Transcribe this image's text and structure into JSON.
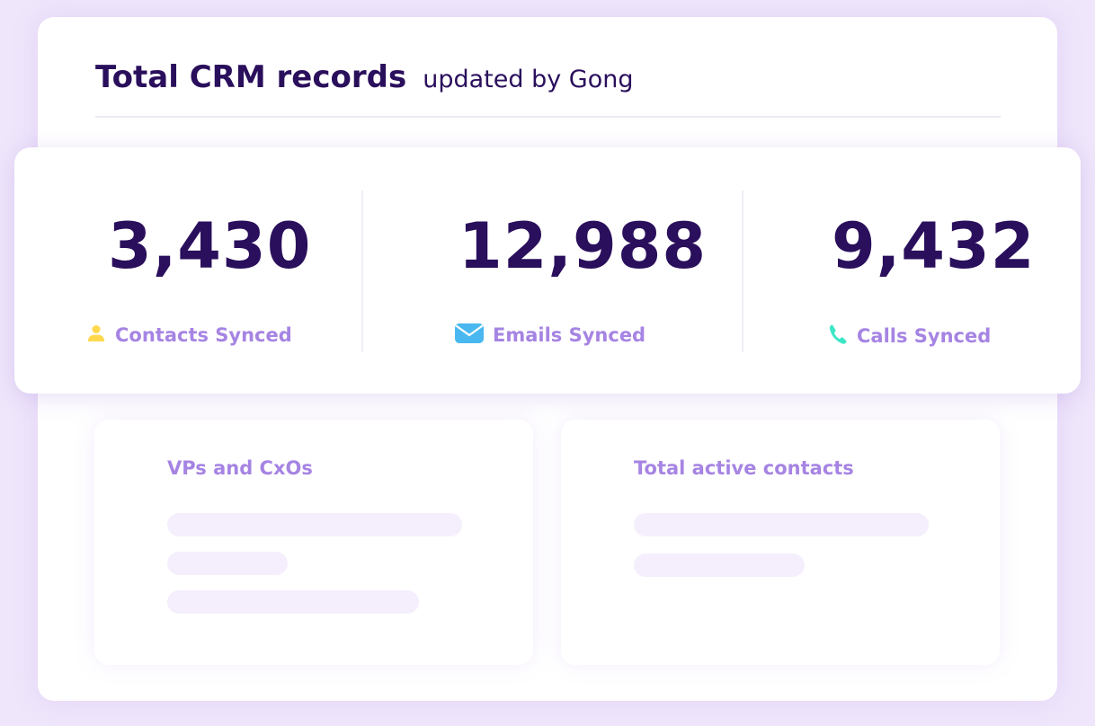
{
  "header": {
    "title": "Total CRM records",
    "subtitle": "updated by Gong"
  },
  "stats": [
    {
      "value": "3,430",
      "label": "Contacts Synced",
      "icon": "person-icon",
      "icon_color": "#ffd84d"
    },
    {
      "value": "12,988",
      "label": "Emails Synced",
      "icon": "envelope-icon",
      "icon_color": "#49b8f0"
    },
    {
      "value": "9,432",
      "label": "Calls Synced",
      "icon": "phone-icon",
      "icon_color": "#3ee6c8"
    }
  ],
  "cards": [
    {
      "title": "VPs and CxOs"
    },
    {
      "title": "Total active contacts"
    }
  ],
  "colors": {
    "background": "#efe6fb",
    "title": "#2a0f5c",
    "label": "#a684e3",
    "placeholder": "#f5effd"
  }
}
